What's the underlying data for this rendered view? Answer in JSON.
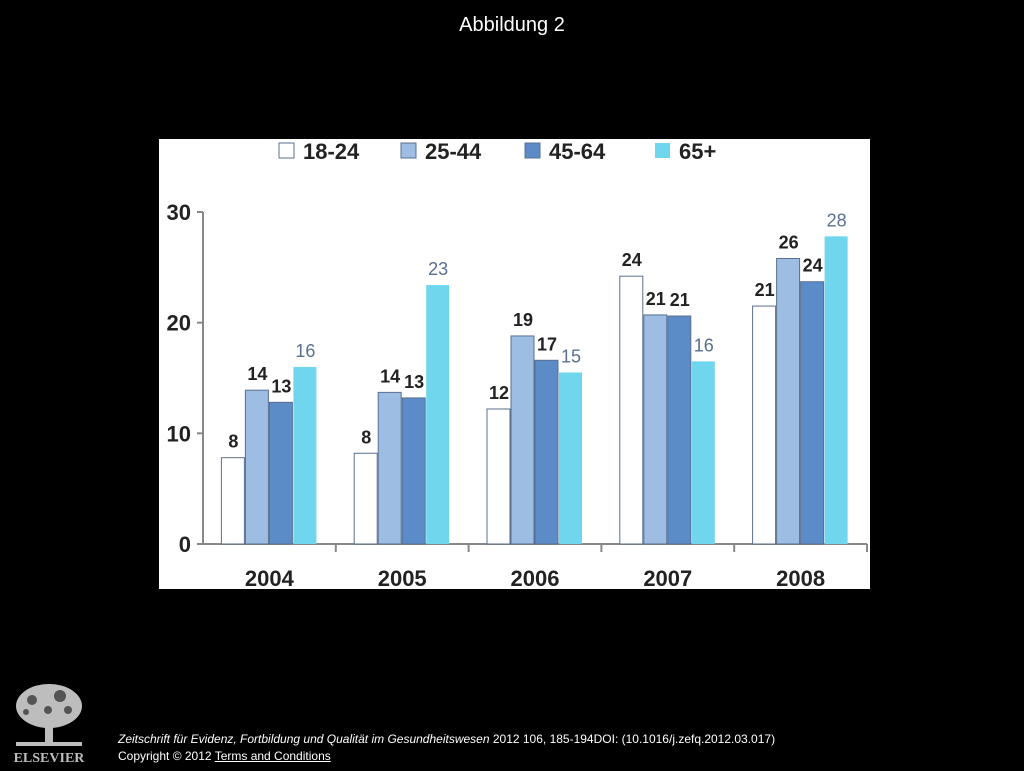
{
  "slide": {
    "title": "Abbildung 2"
  },
  "chart_data": {
    "type": "bar",
    "categories": [
      "2004",
      "2005",
      "2006",
      "2007",
      "2008"
    ],
    "series": [
      {
        "name": "18-24",
        "color": "#ffffff",
        "values": [
          8,
          8,
          12,
          24,
          21
        ]
      },
      {
        "name": "25-44",
        "color": "#9dbde3",
        "values": [
          14,
          14,
          19,
          21,
          26
        ]
      },
      {
        "name": "45-64",
        "color": "#5b8cc8",
        "values": [
          13,
          13,
          17,
          21,
          24
        ]
      },
      {
        "name": "65+",
        "color": "#6fd6ee",
        "values": [
          16,
          23,
          15,
          16,
          28
        ]
      }
    ],
    "data_labels": [
      [
        "8",
        "8",
        "12",
        "24",
        "21"
      ],
      [
        "14",
        "14",
        "19",
        "21",
        "26"
      ],
      [
        "13",
        "13",
        "17",
        "21",
        "24"
      ],
      [
        "16",
        "23",
        "15",
        "16",
        "28"
      ]
    ],
    "bar_heights": [
      [
        7.8,
        8.2,
        12.2,
        24.2,
        21.5
      ],
      [
        13.9,
        13.7,
        18.8,
        20.7,
        25.8
      ],
      [
        12.8,
        13.2,
        16.6,
        20.6,
        23.7
      ],
      [
        16.0,
        23.4,
        15.5,
        16.5,
        27.8
      ]
    ],
    "yticks": [
      "0",
      "10",
      "20",
      "30"
    ],
    "ylim": [
      0,
      30
    ],
    "legend_position": "top",
    "grid": false
  },
  "footer": {
    "journal": "Zeitschrift für Evidenz, Fortbildung und Qualität im Gesundheitswesen",
    "citation": " 2012 106, 185-194DOI: (10.1016/j.zefq.2012.03.017)",
    "copyright": "Copyright © 2012",
    "terms_link": " Terms and Conditions"
  },
  "logo": {
    "text": "ELSEVIER",
    "icon": "elsevier-tree-icon"
  }
}
